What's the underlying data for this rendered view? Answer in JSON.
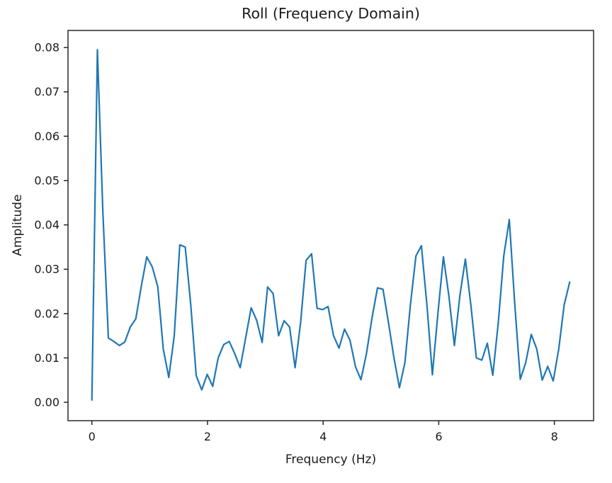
{
  "figure": {
    "title": "Roll (Frequency Domain)",
    "xlabel": "Frequency (Hz)",
    "ylabel": "Amplitude"
  },
  "chart_data": {
    "type": "line",
    "title": "Roll (Frequency Domain)",
    "xlabel": "Frequency (Hz)",
    "ylabel": "Amplitude",
    "line_color": "#1f77b4",
    "grid": false,
    "legend_position": "none",
    "xlim": [
      -0.413,
      8.678
    ],
    "ylim": [
      -0.00415,
      0.08385
    ],
    "xticks": [
      0,
      2,
      4,
      6,
      8
    ],
    "xtick_labels": [
      "0",
      "2",
      "4",
      "6",
      "8"
    ],
    "yticks": [
      0.0,
      0.01,
      0.02,
      0.03,
      0.04,
      0.05,
      0.06,
      0.07,
      0.08
    ],
    "ytick_labels": [
      "0.00",
      "0.01",
      "0.02",
      "0.03",
      "0.04",
      "0.05",
      "0.06",
      "0.07",
      "0.08"
    ],
    "x": [
      0.0,
      0.095,
      0.19,
      0.285,
      0.38,
      0.475,
      0.57,
      0.665,
      0.76,
      0.855,
      0.95,
      1.045,
      1.14,
      1.235,
      1.33,
      1.425,
      1.52,
      1.615,
      1.71,
      1.805,
      1.9,
      1.995,
      2.09,
      2.185,
      2.28,
      2.375,
      2.47,
      2.565,
      2.66,
      2.755,
      2.85,
      2.945,
      3.04,
      3.135,
      3.23,
      3.325,
      3.42,
      3.515,
      3.61,
      3.705,
      3.8,
      3.895,
      3.99,
      4.085,
      4.18,
      4.275,
      4.37,
      4.465,
      4.56,
      4.655,
      4.75,
      4.845,
      4.94,
      5.035,
      5.13,
      5.225,
      5.32,
      5.415,
      5.51,
      5.605,
      5.7,
      5.795,
      5.89,
      5.985,
      6.08,
      6.175,
      6.27,
      6.365,
      6.46,
      6.555,
      6.65,
      6.745,
      6.84,
      6.935,
      7.03,
      7.125,
      7.22,
      7.315,
      7.41,
      7.505,
      7.6,
      7.695,
      7.79,
      7.885,
      7.98,
      8.075,
      8.17,
      8.265
    ],
    "y": [
      0.0005,
      0.0795,
      0.043,
      0.0145,
      0.0137,
      0.0128,
      0.0136,
      0.017,
      0.0188,
      0.0262,
      0.0328,
      0.0305,
      0.026,
      0.012,
      0.0056,
      0.015,
      0.0355,
      0.035,
      0.022,
      0.006,
      0.0028,
      0.0063,
      0.0036,
      0.01,
      0.013,
      0.0137,
      0.011,
      0.0078,
      0.0145,
      0.0213,
      0.0185,
      0.0135,
      0.026,
      0.0245,
      0.015,
      0.0184,
      0.017,
      0.0078,
      0.018,
      0.032,
      0.0335,
      0.0212,
      0.0209,
      0.0216,
      0.015,
      0.0122,
      0.0165,
      0.014,
      0.008,
      0.0051,
      0.011,
      0.019,
      0.0258,
      0.0255,
      0.018,
      0.01,
      0.0033,
      0.009,
      0.022,
      0.033,
      0.0353,
      0.022,
      0.0062,
      0.02,
      0.0328,
      0.024,
      0.0128,
      0.024,
      0.0323,
      0.022,
      0.01,
      0.0095,
      0.0133,
      0.0061,
      0.018,
      0.033,
      0.0412,
      0.022,
      0.0052,
      0.009,
      0.0153,
      0.012,
      0.005,
      0.0081,
      0.0048,
      0.012,
      0.022,
      0.0271
    ]
  }
}
